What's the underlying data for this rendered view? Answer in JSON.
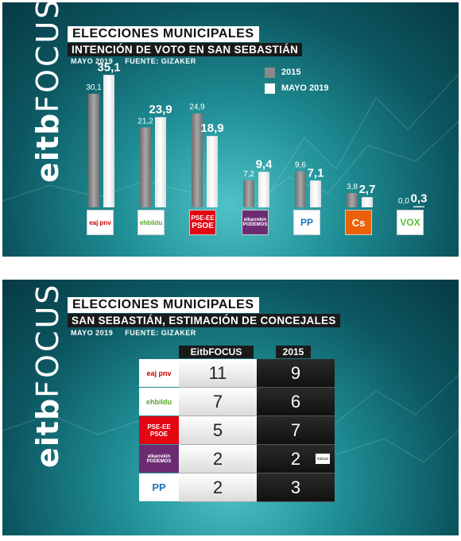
{
  "brand": "eitbFOCUS",
  "chart_data": [
    {
      "type": "bar",
      "title": "ELECCIONES MUNICIPALES",
      "subtitle": "INTENCIÓN DE VOTO EN SAN SEBASTIÁN",
      "date": "MAYO 2019",
      "source": "FUENTE: GIZAKER",
      "legend_position": "top-right",
      "ylim": [
        0,
        40
      ],
      "categories": [
        "PNV",
        "EH Bildu",
        "PSE-EE",
        "Elkarrekin Podemos",
        "PP",
        "Cs",
        "VOX"
      ],
      "series": [
        {
          "name": "2015",
          "color": "#8a8a8a",
          "values": [
            30.1,
            21.2,
            24.9,
            7.2,
            9.6,
            3.8,
            0.0
          ],
          "labels": [
            "30,1",
            "21,2",
            "24,9",
            "7,2",
            "9,6",
            "3,8",
            "0,0"
          ]
        },
        {
          "name": "MAYO 2019",
          "color": "#ffffff",
          "values": [
            35.1,
            23.9,
            18.9,
            9.4,
            7.1,
            2.7,
            0.3
          ],
          "labels": [
            "35,1",
            "23,9",
            "18,9",
            "9,4",
            "7,1",
            "2,7",
            "0,3"
          ]
        }
      ]
    },
    {
      "type": "table",
      "title": "ELECCIONES MUNICIPALES",
      "subtitle": "SAN SEBASTIÁN, ESTIMACIÓN DE CONCEJALES",
      "date": "MAYO 2019",
      "source": "FUENTE: GIZAKER",
      "columns": [
        "EitbFOCUS",
        "2015"
      ],
      "rows": [
        {
          "party": "PNV",
          "eitbfocus": "11",
          "y2015": "9"
        },
        {
          "party": "EH Bildu",
          "eitbfocus": "7",
          "y2015": "6"
        },
        {
          "party": "PSE-EE",
          "eitbfocus": "5",
          "y2015": "7"
        },
        {
          "party": "Elkarrekin Podemos",
          "eitbfocus": "2",
          "y2015": "2"
        },
        {
          "party": "PP",
          "eitbfocus": "2",
          "y2015": "3"
        }
      ]
    }
  ],
  "logos": {
    "pnv": "eaj pnv",
    "bildu": "ehbildu",
    "pse_top": "PSE-EE",
    "pse_bottom": "PSOE",
    "podemos": "elkarrekin PODEMOS",
    "pp": "PP",
    "cs": "Cs",
    "vox": "VOX",
    "irabazi": "irabazi"
  }
}
